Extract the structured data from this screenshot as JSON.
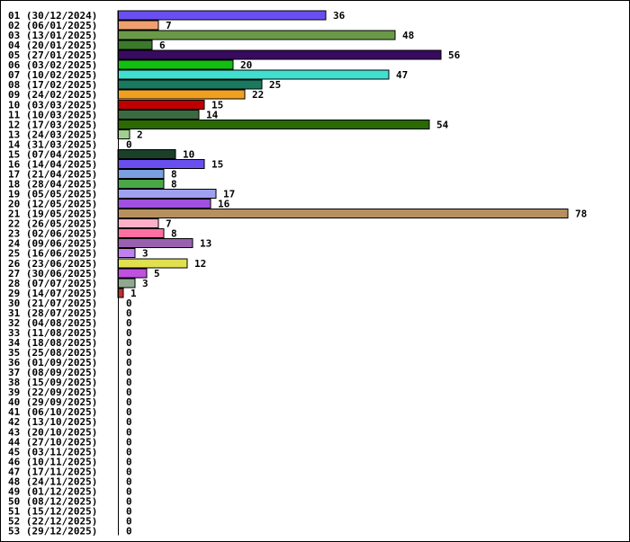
{
  "chart_data": {
    "type": "bar",
    "orientation": "horizontal",
    "title": "",
    "xlabel": "",
    "ylabel": "",
    "xlim": [
      0,
      78
    ],
    "grid": false,
    "legend": "none",
    "categories": [
      "01 (30/12/2024)",
      "02 (06/01/2025)",
      "03 (13/01/2025)",
      "04 (20/01/2025)",
      "05 (27/01/2025)",
      "06 (03/02/2025)",
      "07 (10/02/2025)",
      "08 (17/02/2025)",
      "09 (24/02/2025)",
      "10 (03/03/2025)",
      "11 (10/03/2025)",
      "12 (17/03/2025)",
      "13 (24/03/2025)",
      "14 (31/03/2025)",
      "15 (07/04/2025)",
      "16 (14/04/2025)",
      "17 (21/04/2025)",
      "18 (28/04/2025)",
      "19 (05/05/2025)",
      "20 (12/05/2025)",
      "21 (19/05/2025)",
      "22 (26/05/2025)",
      "23 (02/06/2025)",
      "24 (09/06/2025)",
      "25 (16/06/2025)",
      "26 (23/06/2025)",
      "27 (30/06/2025)",
      "28 (07/07/2025)",
      "29 (14/07/2025)",
      "30 (21/07/2025)",
      "31 (28/07/2025)",
      "32 (04/08/2025)",
      "33 (11/08/2025)",
      "34 (18/08/2025)",
      "35 (25/08/2025)",
      "36 (01/09/2025)",
      "37 (08/09/2025)",
      "38 (15/09/2025)",
      "39 (22/09/2025)",
      "40 (29/09/2025)",
      "41 (06/10/2025)",
      "42 (13/10/2025)",
      "43 (20/10/2025)",
      "44 (27/10/2025)",
      "45 (03/11/2025)",
      "46 (10/11/2025)",
      "47 (17/11/2025)",
      "48 (24/11/2025)",
      "49 (01/12/2025)",
      "50 (08/12/2025)",
      "51 (15/12/2025)",
      "52 (22/12/2025)",
      "53 (29/12/2025)"
    ],
    "values": [
      36,
      7,
      48,
      6,
      56,
      20,
      47,
      25,
      22,
      15,
      14,
      54,
      2,
      0,
      10,
      15,
      8,
      8,
      17,
      16,
      78,
      7,
      8,
      13,
      3,
      12,
      5,
      3,
      1,
      0,
      0,
      0,
      0,
      0,
      0,
      0,
      0,
      0,
      0,
      0,
      0,
      0,
      0,
      0,
      0,
      0,
      0,
      0,
      0,
      0,
      0,
      0,
      0
    ],
    "colors": [
      "#6a4ff0",
      "#f0a070",
      "#6a9a48",
      "#3a7a2a",
      "#380a60",
      "#10c010",
      "#40e0d0",
      "#1a7a60",
      "#f0a020",
      "#c00000",
      "#3a6a40",
      "#2a6a00",
      "#a0d090",
      "#ffffff",
      "#1a402a",
      "#6a4ff0",
      "#7aa0e0",
      "#48a848",
      "#a0a0f0",
      "#a050e0",
      "#b89060",
      "#ffb0c8",
      "#ff70a0",
      "#9a60b0",
      "#c080f0",
      "#e0e050",
      "#c050e0",
      "#90a890",
      "#c03030",
      "#ffffff",
      "#ffffff",
      "#ffffff",
      "#ffffff",
      "#ffffff",
      "#ffffff",
      "#ffffff",
      "#ffffff",
      "#ffffff",
      "#ffffff",
      "#ffffff",
      "#ffffff",
      "#ffffff",
      "#ffffff",
      "#ffffff",
      "#ffffff",
      "#ffffff",
      "#ffffff",
      "#ffffff",
      "#ffffff",
      "#ffffff",
      "#ffffff",
      "#ffffff",
      "#ffffff"
    ]
  }
}
